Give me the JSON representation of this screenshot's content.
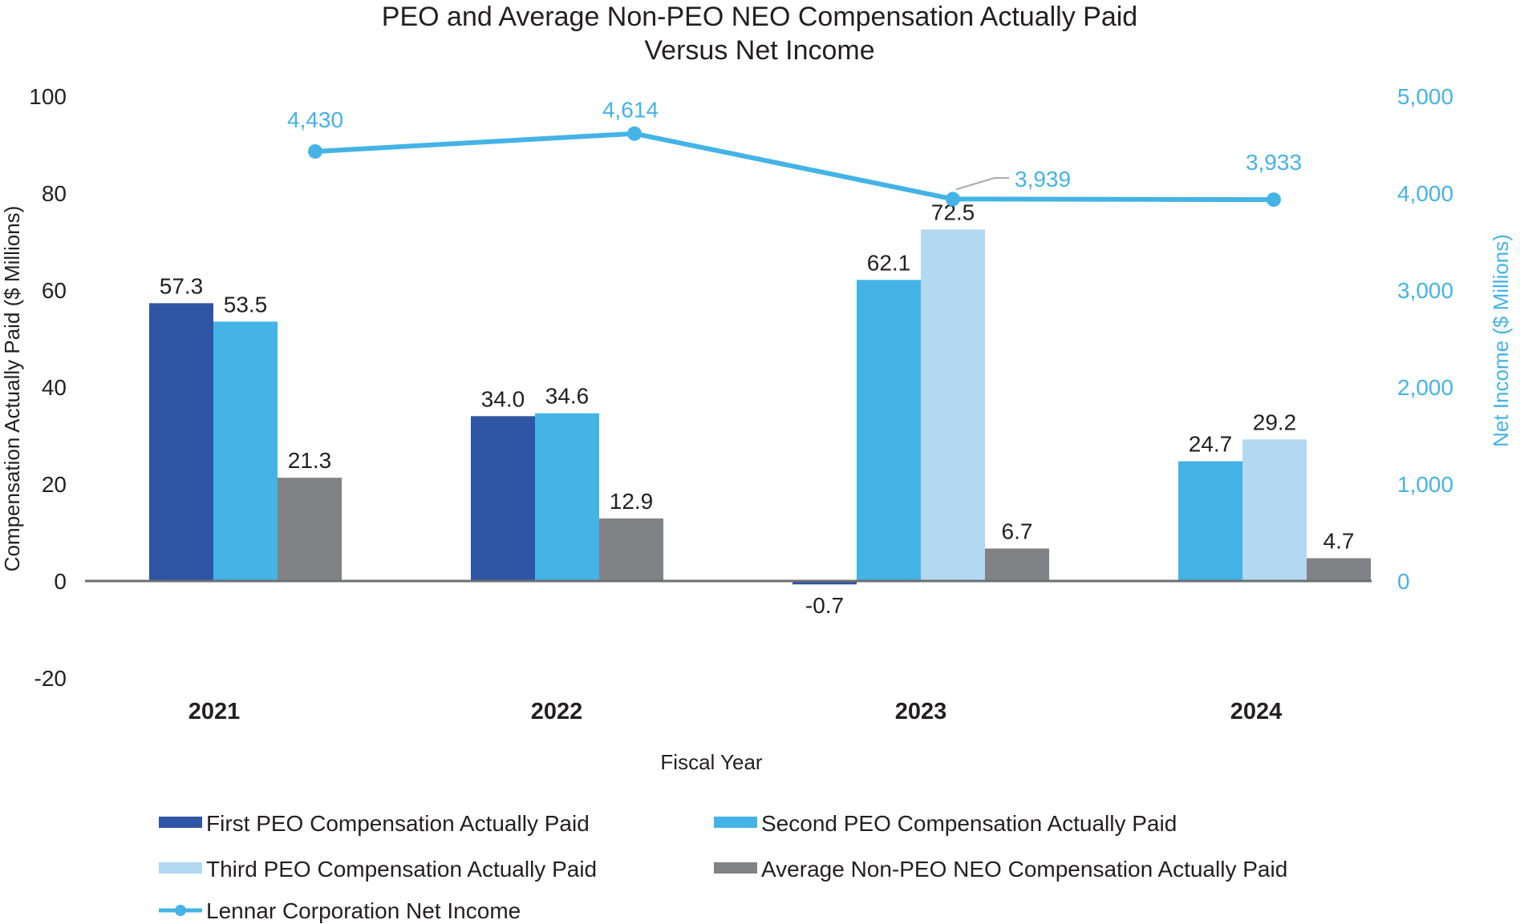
{
  "chart_data": {
    "type": "bar",
    "title_line1": "PEO and Average Non-PEO NEO Compensation Actually Paid",
    "title_line2": "Versus Net Income",
    "xlabel": "Fiscal Year",
    "ylabel": "Compensation Actually Paid ($ Millions)",
    "y2label": "Net Income ($ Millions)",
    "ylim": [
      -20,
      100
    ],
    "y_ticks": [
      100,
      80,
      60,
      40,
      20,
      0,
      -20
    ],
    "y2lim": [
      0,
      5000
    ],
    "y2_ticks": [
      "5,000",
      "4,000",
      "3,000",
      "2,000",
      "1,000",
      "0"
    ],
    "y2_tick_values": [
      5000,
      4000,
      3000,
      2000,
      1000,
      0
    ],
    "categories": [
      "2021",
      "2022",
      "2023",
      "2024"
    ],
    "series": [
      {
        "name": "First PEO Compensation Actually Paid",
        "color": "#2e55a3",
        "values": [
          57.3,
          34.0,
          -0.7,
          null
        ],
        "labels": [
          "57.3",
          "34.0",
          "-0.7",
          ""
        ]
      },
      {
        "name": "Second PEO Compensation Actually Paid",
        "color": "#44b3e6",
        "values": [
          53.5,
          34.6,
          62.1,
          24.7
        ],
        "labels": [
          "53.5",
          "34.6",
          "62.1",
          "24.7"
        ]
      },
      {
        "name": "Third PEO Compensation Actually Paid",
        "color": "#b3d8f2",
        "values": [
          null,
          null,
          72.5,
          29.2
        ],
        "labels": [
          "",
          "",
          "72.5",
          "29.2"
        ]
      },
      {
        "name": "Average Non-PEO NEO Compensation Actually Paid",
        "color": "#818285",
        "values": [
          21.3,
          12.9,
          6.7,
          4.7
        ],
        "labels": [
          "21.3",
          "12.9",
          "6.7",
          "4.7"
        ]
      }
    ],
    "line_series": {
      "name": "Lennar Corporation Net Income",
      "color": "#44b3e6",
      "axis": "right",
      "values": [
        4430,
        4614,
        3939,
        3933
      ],
      "labels": [
        "4,430",
        "4,614",
        "3,939",
        "3,933"
      ]
    },
    "legend_position": "bottom"
  }
}
